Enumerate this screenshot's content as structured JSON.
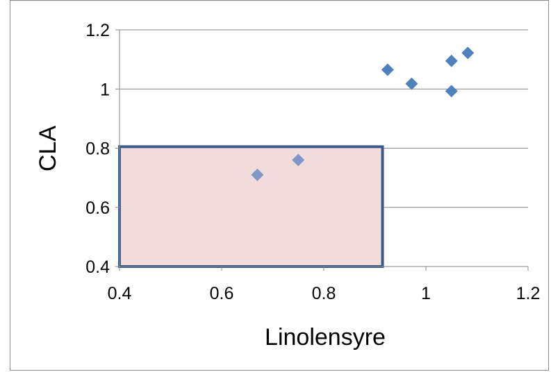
{
  "chart_data": {
    "type": "scatter",
    "xlabel": "Linolensyre",
    "ylabel": "CLA",
    "xlim": [
      0.4,
      1.2
    ],
    "ylim": [
      0.4,
      1.2
    ],
    "x_ticks": [
      0.4,
      0.6,
      0.8,
      1,
      1.2
    ],
    "y_ticks": [
      0.4,
      0.6,
      0.8,
      1,
      1.2
    ],
    "x_tick_labels": [
      "0.4",
      "0.6",
      "0.8",
      "1",
      "1.2"
    ],
    "y_tick_labels": [
      "0.4",
      "0.6",
      "0.8",
      "1",
      "1.2"
    ],
    "grid": "horizontal major gridlines",
    "legend": "none",
    "marker": "diamond",
    "series": [
      {
        "points": [
          {
            "x": 0.67,
            "y": 0.71
          },
          {
            "x": 0.75,
            "y": 0.76
          },
          {
            "x": 0.925,
            "y": 1.065
          },
          {
            "x": 0.972,
            "y": 1.018
          },
          {
            "x": 1.05,
            "y": 1.095
          },
          {
            "x": 1.05,
            "y": 0.993
          },
          {
            "x": 1.082,
            "y": 1.122
          }
        ]
      }
    ],
    "highlight_region": {
      "x_range": [
        0.4,
        0.915
      ],
      "y_range": [
        0.4,
        0.805
      ],
      "fill_color": "#f2dcdb",
      "border_color": "#3a5a8a"
    },
    "colors": {
      "marker": "#4f81bd",
      "marker_in_region": "#7f97c9",
      "gridline": "#868686",
      "axis": "#868686"
    }
  }
}
